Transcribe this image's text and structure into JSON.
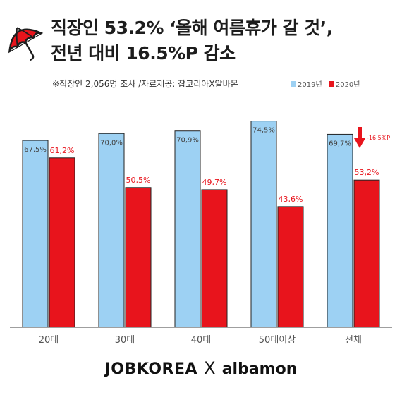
{
  "header": {
    "title_line1": "직장인 53.2% ‘올해 여름휴가 갈 것’,",
    "title_line2": "전년 대비 16.5%P 감소",
    "subtitle": "※직장인 2,056명 조사 /자료제공: 잡코리아X알바몬",
    "icon": "umbrella-icon"
  },
  "legend": {
    "items": [
      {
        "label": "2019년",
        "color": "#9dd1f3"
      },
      {
        "label": "2020년",
        "color": "#e8141c"
      }
    ]
  },
  "colors": {
    "series2019": "#9dd1f3",
    "series2020": "#e8141c",
    "label2019": "#444444",
    "label2020": "#e8141c",
    "baseline": "#666666"
  },
  "chart_data": {
    "type": "bar",
    "categories": [
      "20대",
      "30대",
      "40대",
      "50대이상",
      "전체"
    ],
    "series": [
      {
        "name": "2019년",
        "values": [
          67.5,
          70.0,
          70.9,
          74.5,
          69.7
        ],
        "labels": [
          "67,5%",
          "70,0%",
          "70,9%",
          "74,5%",
          "69,7%"
        ]
      },
      {
        "name": "2020년",
        "values": [
          61.2,
          50.5,
          49.7,
          43.6,
          53.2
        ],
        "labels": [
          "61,2%",
          "50,5%",
          "49,7%",
          "43,6%",
          "53,2%"
        ]
      }
    ],
    "ylim": [
      0,
      80
    ],
    "grid": false,
    "legend_position": "top-right",
    "annotation": {
      "text": "-16,5%P",
      "category": "전체",
      "color": "#e8141c"
    }
  },
  "footer": {
    "logo1": "JOBKOREA",
    "separator": "X",
    "logo2": "albamon"
  }
}
